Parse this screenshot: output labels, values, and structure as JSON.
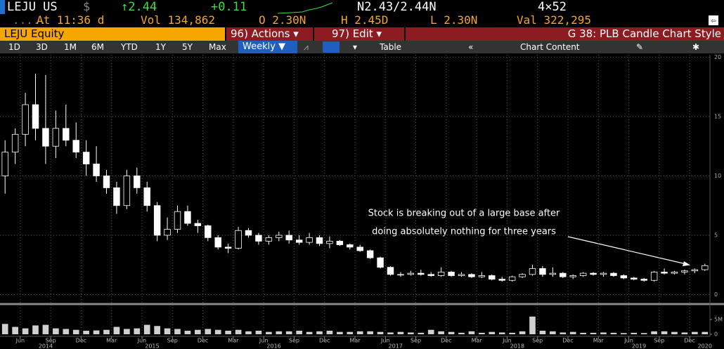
{
  "header": {
    "ticker": "LEJU US",
    "currency": "$",
    "last": "↑2.44",
    "change": "+0.11",
    "bid_ask": "N2.43/2.44N",
    "size": "4×52",
    "time": "At 11:36 d",
    "volume": "Vol 134,862",
    "open": "O 2.30N",
    "high": "H 2.45D",
    "low": "L 2.30N",
    "value": "Val 322,295"
  },
  "menu": {
    "security": "LEJU Equity",
    "actions": "96) Actions ▾",
    "edit": "97) Edit ▾",
    "function": "G 38: PLB Candle Chart Style"
  },
  "toolbar": {
    "ranges": [
      "1D",
      "3D",
      "1M",
      "6M",
      "YTD",
      "1Y",
      "5Y",
      "Max"
    ],
    "frequency": "Weekly ▼",
    "table": "Table",
    "chart_content": "Chart Content"
  },
  "chart_data": {
    "type": "candlestick",
    "up_color": "#000000",
    "down_color": "#ffffff",
    "edge_color": "#ffffff",
    "volume_color": "#d0d0d0",
    "grid": true,
    "x": [
      "2014-04",
      "2014-05",
      "2014-06",
      "2014-07",
      "2014-08",
      "2014-09",
      "2014-10",
      "2014-11",
      "2014-12",
      "2015-01",
      "2015-02",
      "2015-03",
      "2015-04",
      "2015-05",
      "2015-06",
      "2015-07",
      "2015-08",
      "2015-09",
      "2015-10",
      "2015-11",
      "2015-12",
      "2016-01",
      "2016-02",
      "2016-03",
      "2016-04",
      "2016-05",
      "2016-06",
      "2016-07",
      "2016-08",
      "2016-09",
      "2016-10",
      "2016-11",
      "2016-12",
      "2017-01",
      "2017-02",
      "2017-03",
      "2017-04",
      "2017-05",
      "2017-06",
      "2017-07",
      "2017-08",
      "2017-09",
      "2017-10",
      "2017-11",
      "2017-12",
      "2018-01",
      "2018-02",
      "2018-03",
      "2018-04",
      "2018-05",
      "2018-06",
      "2018-07",
      "2018-08",
      "2018-09",
      "2018-10",
      "2018-11",
      "2018-12",
      "2019-01",
      "2019-02",
      "2019-03",
      "2019-04",
      "2019-05",
      "2019-06",
      "2019-07",
      "2019-08",
      "2019-09",
      "2019-10",
      "2019-11",
      "2019-12",
      "2020-01"
    ],
    "open": [
      10,
      12,
      13.5,
      16,
      14,
      12.5,
      14,
      13,
      12,
      11,
      10,
      9,
      7.5,
      10,
      9,
      7.5,
      5,
      5.5,
      7,
      6,
      5.8,
      4.8,
      4,
      3.9,
      5.4,
      5,
      4.5,
      4.8,
      5,
      4.6,
      4.4,
      4.8,
      4.3,
      4.5,
      4.2,
      4,
      3.7,
      3.1,
      2.3,
      1.7,
      1.7,
      1.8,
      1.7,
      1.6,
      1.9,
      1.6,
      1.7,
      1.5,
      1.6,
      1.3,
      1.2,
      1.5,
      1.7,
      2.2,
      1.7,
      1.8,
      1.5,
      1.6,
      1.8,
      1.7,
      1.8,
      1.6,
      1.4,
      1.3,
      1.2,
      1.9,
      1.8,
      1.9,
      2.0,
      2.1
    ],
    "high": [
      13,
      14,
      17,
      18.6,
      18.5,
      15.5,
      16,
      14.5,
      13,
      12.5,
      10.5,
      9.5,
      10.5,
      10.7,
      9.5,
      7.8,
      6.5,
      7.5,
      7.5,
      6.3,
      5.9,
      5,
      4.3,
      5.7,
      5.6,
      5.2,
      5,
      5.3,
      5.4,
      5,
      5.2,
      5,
      4.9,
      4.6,
      4.3,
      4.2,
      3.8,
      3.2,
      2.4,
      1.9,
      2.0,
      2.1,
      1.9,
      2.3,
      2.0,
      1.9,
      1.8,
      1.9,
      1.7,
      1.5,
      1.6,
      1.8,
      2.5,
      2.4,
      2.3,
      1.9,
      1.7,
      1.9,
      1.9,
      1.9,
      1.9,
      1.7,
      1.5,
      1.4,
      2.0,
      2.2,
      2.0,
      2.1,
      2.2,
      2.6
    ],
    "low": [
      8.5,
      11,
      12.5,
      13,
      11,
      11.5,
      12.5,
      11.5,
      10,
      9.5,
      8.5,
      6.8,
      7.2,
      8.5,
      7,
      4.5,
      4.6,
      5.2,
      5.8,
      5.2,
      4.5,
      3.8,
      3.5,
      3.8,
      4.8,
      4.2,
      4.2,
      4.5,
      4.3,
      4.2,
      4.2,
      4.1,
      3.9,
      4.1,
      3.8,
      3.6,
      3.0,
      2.2,
      1.6,
      1.5,
      1.6,
      1.6,
      1.5,
      1.5,
      1.5,
      1.5,
      1.4,
      1.4,
      1.2,
      1.1,
      1.1,
      1.4,
      1.6,
      1.5,
      1.5,
      1.4,
      1.3,
      1.5,
      1.6,
      1.5,
      1.5,
      1.3,
      1.2,
      1.1,
      1.1,
      1.7,
      1.7,
      1.7,
      1.8,
      2.0
    ],
    "close": [
      12,
      13.5,
      16,
      14,
      12.5,
      14,
      13,
      12,
      11,
      10,
      9,
      7.5,
      10,
      9,
      7.5,
      5,
      5.5,
      7,
      6,
      5.8,
      4.8,
      4,
      3.9,
      5.4,
      5,
      4.5,
      4.8,
      5,
      4.6,
      4.4,
      4.8,
      4.3,
      4.5,
      4.2,
      4,
      3.7,
      3.1,
      2.3,
      1.7,
      1.7,
      1.8,
      1.7,
      1.6,
      1.9,
      1.6,
      1.7,
      1.5,
      1.6,
      1.3,
      1.2,
      1.5,
      1.7,
      2.2,
      1.7,
      1.8,
      1.5,
      1.6,
      1.8,
      1.7,
      1.8,
      1.6,
      1.4,
      1.3,
      1.2,
      1.9,
      1.8,
      1.9,
      2.0,
      2.1,
      2.44
    ],
    "volume": [
      3500000,
      2500000,
      2000000,
      3000000,
      3200000,
      2000000,
      1800000,
      1500000,
      1200000,
      1300000,
      1500000,
      2500000,
      1800000,
      2000000,
      3200000,
      2800000,
      2000000,
      1800000,
      1200000,
      1500000,
      1800000,
      1500000,
      1200000,
      1500000,
      1000000,
      1200000,
      800000,
      1000000,
      1000000,
      1200000,
      800000,
      1000000,
      1200000,
      800000,
      800000,
      1000000,
      1000000,
      800000,
      600000,
      800000,
      600000,
      500000,
      1500000,
      1000000,
      800000,
      500000,
      1000000,
      500000,
      800000,
      600000,
      500000,
      1000000,
      6000000,
      1200000,
      1000000,
      600000,
      800000,
      500000,
      500000,
      600000,
      500000,
      400000,
      500000,
      400000,
      1000000,
      1000000,
      800000,
      600000,
      800000,
      800000
    ],
    "xlim": [
      "2014-04",
      "2020-02"
    ],
    "xticks": [
      {
        "value": "2014-06",
        "label": "Jun"
      },
      {
        "value": "2014-09",
        "label": "Sep"
      },
      {
        "value": "2014-12",
        "label": "Dec"
      },
      {
        "value": "2015-03",
        "label": "Mar"
      },
      {
        "value": "2015-06",
        "label": "Jun"
      },
      {
        "value": "2015-09",
        "label": "Sep"
      },
      {
        "value": "2015-12",
        "label": "Dec"
      },
      {
        "value": "2016-03",
        "label": "Mar"
      },
      {
        "value": "2016-06",
        "label": "Jun"
      },
      {
        "value": "2016-09",
        "label": "Sep"
      },
      {
        "value": "2016-12",
        "label": "Dec"
      },
      {
        "value": "2017-03",
        "label": "Mar"
      },
      {
        "value": "2017-06",
        "label": "Jun"
      },
      {
        "value": "2017-09",
        "label": "Sep"
      },
      {
        "value": "2017-12",
        "label": "Dec"
      },
      {
        "value": "2018-03",
        "label": "Mar"
      },
      {
        "value": "2018-06",
        "label": "Jun"
      },
      {
        "value": "2018-09",
        "label": "Sep"
      },
      {
        "value": "2018-12",
        "label": "Dec"
      },
      {
        "value": "2019-03",
        "label": "Mar"
      },
      {
        "value": "2019-06",
        "label": "Jun"
      },
      {
        "value": "2019-09",
        "label": "Sep"
      },
      {
        "value": "2019-12",
        "label": "Dec"
      }
    ],
    "xyears": [
      2014,
      2015,
      2016,
      2017,
      2018,
      2019,
      2020
    ],
    "ylim": [
      -0.5,
      20.2
    ],
    "yticks": [
      0,
      5,
      10,
      15,
      20
    ],
    "vlim": [
      0,
      9300000
    ],
    "vticks": [
      0,
      {
        "value": 5000000,
        "label": "5M"
      }
    ],
    "annotations": [
      "Stock is breaking out of a large base after",
      "doing absolutely nothing for three years"
    ]
  }
}
